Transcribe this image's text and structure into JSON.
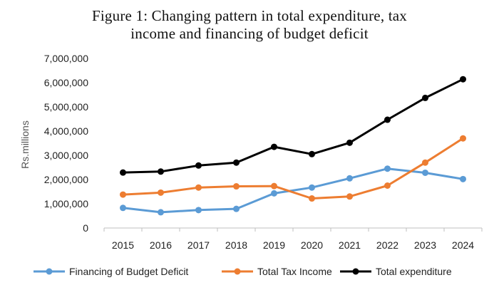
{
  "chart_data": {
    "type": "line",
    "title_lines": [
      "Figure  1: Changing  pattern  in total expenditure,  tax",
      "income  and financing  of  budget deficit"
    ],
    "xlabel": "",
    "ylabel": "Rs.millions",
    "categories": [
      "2015",
      "2016",
      "2017",
      "2018",
      "2019",
      "2020",
      "2021",
      "2022",
      "2023",
      "2024"
    ],
    "ylim": [
      0,
      7000000
    ],
    "y_ticks": [
      0,
      1000000,
      2000000,
      3000000,
      4000000,
      5000000,
      6000000,
      7000000
    ],
    "y_tick_labels": [
      "0",
      "1,000,000",
      "2,000,000",
      "3,000,000",
      "4,000,000",
      "5,000,000",
      "6,000,000",
      "7,000,000"
    ],
    "grid": false,
    "legend_position": "bottom",
    "series": [
      {
        "name": "Financing of Budget Deficit",
        "color": "#5b9bd5",
        "values": [
          830000,
          650000,
          740000,
          790000,
          1430000,
          1670000,
          2050000,
          2450000,
          2280000,
          2020000
        ]
      },
      {
        "name": "Total Tax Income",
        "color": "#ed7d31",
        "values": [
          1380000,
          1460000,
          1670000,
          1720000,
          1730000,
          1220000,
          1300000,
          1750000,
          2700000,
          3700000
        ]
      },
      {
        "name": "Total expenditure",
        "color": "#000000",
        "values": [
          2290000,
          2330000,
          2580000,
          2700000,
          3350000,
          3050000,
          3520000,
          4470000,
          5370000,
          6140000
        ]
      }
    ]
  }
}
